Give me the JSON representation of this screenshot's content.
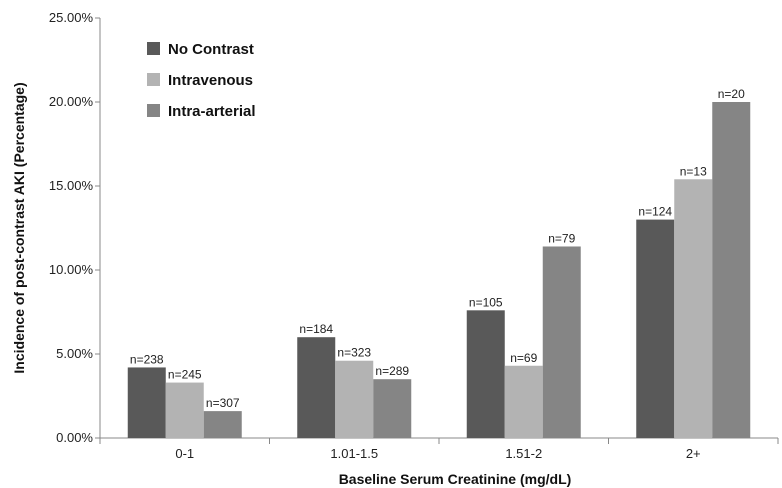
{
  "chart_data": {
    "type": "bar",
    "title": "",
    "xlabel": "Baseline Serum Creatinine (mg/dL)",
    "ylabel": "Incidence of  post-contrast AKI (Percentage)",
    "categories": [
      "0-1",
      "1.01-1.5",
      "1.51-2",
      "2+"
    ],
    "series": [
      {
        "name": "No Contrast",
        "color": "#595959",
        "values": [
          4.2,
          6.0,
          7.6,
          13.0
        ],
        "labels": [
          "n=238",
          "n=184",
          "n=105",
          "n=124"
        ]
      },
      {
        "name": "Intravenous",
        "color": "#b3b3b3",
        "values": [
          3.3,
          4.6,
          4.3,
          15.4
        ],
        "labels": [
          "n=245",
          "n=323",
          "n=69",
          "n=13"
        ]
      },
      {
        "name": "Intra-arterial",
        "color": "#858585",
        "values": [
          1.6,
          3.5,
          11.4,
          20.0
        ],
        "labels": [
          "n=307",
          "n=289",
          "n=79",
          "n=20"
        ]
      }
    ],
    "yticks": [
      "0.00%",
      "5.00%",
      "10.00%",
      "15.00%",
      "20.00%",
      "25.00%"
    ],
    "ylim": [
      0,
      25
    ],
    "grid": false,
    "legend_position": "top-left"
  }
}
